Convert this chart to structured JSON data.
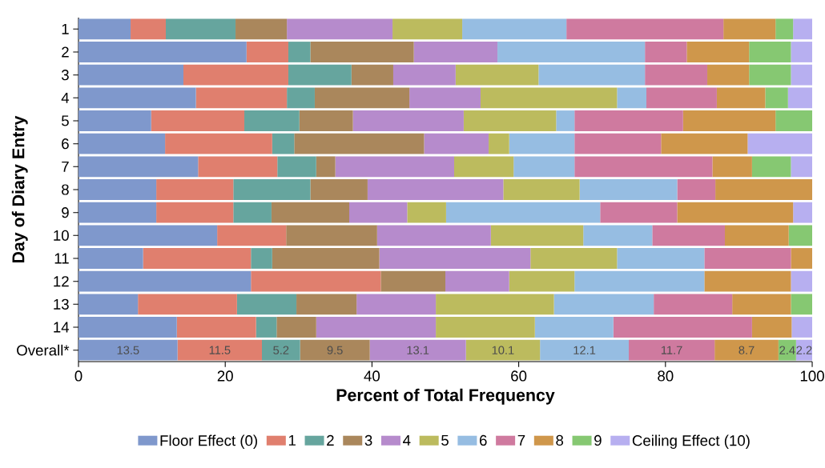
{
  "chart_data": {
    "type": "bar",
    "orientation": "horizontal",
    "stacked": true,
    "xlabel": "Percent of Total Frequency",
    "ylabel": "Day of Diary Entry",
    "categories": [
      "1",
      "2",
      "3",
      "4",
      "5",
      "6",
      "7",
      "8",
      "9",
      "10",
      "11",
      "12",
      "13",
      "14",
      "Overall*"
    ],
    "xlim": [
      0,
      100
    ],
    "xticks": [
      0,
      20,
      40,
      60,
      80,
      100
    ],
    "grid": false,
    "legend": "bottom",
    "series": [
      {
        "name": "Floor Effect (0)",
        "color": "#7f98cc",
        "values": [
          7.1,
          22.9,
          14.3,
          16.0,
          9.9,
          11.8,
          16.3,
          10.6,
          10.6,
          18.9,
          8.8,
          23.5,
          8.1,
          13.4,
          13.5
        ],
        "value_labels": [
          null,
          null,
          null,
          null,
          null,
          null,
          null,
          null,
          null,
          null,
          null,
          null,
          null,
          null,
          "13.5"
        ]
      },
      {
        "name": "1",
        "color": "#e07f6e",
        "values": [
          4.8,
          5.7,
          14.3,
          12.4,
          12.7,
          14.6,
          10.8,
          10.5,
          10.5,
          9.4,
          14.7,
          17.7,
          13.5,
          10.8,
          11.5
        ],
        "value_labels": [
          null,
          null,
          null,
          null,
          null,
          null,
          null,
          null,
          null,
          null,
          null,
          null,
          null,
          null,
          "11.5"
        ]
      },
      {
        "name": "2",
        "color": "#66a59e",
        "values": [
          9.5,
          3.0,
          8.6,
          3.8,
          7.5,
          3.0,
          5.3,
          10.5,
          5.2,
          0,
          2.9,
          0,
          8.1,
          2.8,
          5.2
        ],
        "value_labels": [
          null,
          null,
          null,
          null,
          null,
          null,
          null,
          null,
          null,
          null,
          null,
          null,
          null,
          null,
          "5.2"
        ]
      },
      {
        "name": "3",
        "color": "#aa875c",
        "values": [
          7.0,
          14.1,
          5.7,
          12.9,
          7.3,
          17.7,
          2.6,
          7.8,
          10.6,
          12.4,
          14.6,
          8.8,
          8.2,
          5.4,
          9.5
        ],
        "value_labels": [
          null,
          null,
          null,
          null,
          null,
          null,
          null,
          null,
          null,
          null,
          null,
          null,
          null,
          null,
          "9.5"
        ]
      },
      {
        "name": "4",
        "color": "#b68bcc",
        "values": [
          14.4,
          11.4,
          8.5,
          9.7,
          15.1,
          8.8,
          16.2,
          18.5,
          7.9,
          15.5,
          20.6,
          8.7,
          10.8,
          16.3,
          13.1
        ],
        "value_labels": [
          null,
          null,
          null,
          null,
          null,
          null,
          null,
          null,
          null,
          null,
          null,
          null,
          null,
          null,
          "13.1"
        ]
      },
      {
        "name": "5",
        "color": "#bcbb5e",
        "values": [
          9.5,
          0,
          11.3,
          18.6,
          12.6,
          2.8,
          8.1,
          10.4,
          5.3,
          12.6,
          11.8,
          8.9,
          16.1,
          13.5,
          10.1
        ],
        "value_labels": [
          null,
          null,
          null,
          null,
          null,
          null,
          null,
          null,
          null,
          null,
          null,
          null,
          null,
          null,
          "10.1"
        ]
      },
      {
        "name": "6",
        "color": "#96bde2",
        "values": [
          14.2,
          20.1,
          14.5,
          4.0,
          2.5,
          8.9,
          8.3,
          13.3,
          21.0,
          9.4,
          11.9,
          17.7,
          13.6,
          10.7,
          12.1
        ],
        "value_labels": [
          null,
          null,
          null,
          null,
          null,
          null,
          null,
          null,
          null,
          null,
          null,
          null,
          null,
          null,
          "12.1"
        ]
      },
      {
        "name": "7",
        "color": "#cf7a9f",
        "values": [
          21.4,
          5.7,
          8.5,
          9.6,
          14.8,
          11.8,
          18.8,
          5.2,
          10.5,
          9.9,
          11.8,
          0,
          10.7,
          18.9,
          11.7
        ],
        "value_labels": [
          null,
          null,
          null,
          null,
          null,
          null,
          null,
          null,
          null,
          null,
          null,
          null,
          null,
          null,
          "11.7"
        ]
      },
      {
        "name": "8",
        "color": "#cf974b",
        "values": [
          7.1,
          8.5,
          5.7,
          6.6,
          12.6,
          11.8,
          5.4,
          13.2,
          15.8,
          8.7,
          2.9,
          11.8,
          8.0,
          5.4,
          8.7
        ],
        "value_labels": [
          null,
          null,
          null,
          null,
          null,
          null,
          null,
          null,
          null,
          null,
          null,
          null,
          null,
          null,
          "8.7"
        ]
      },
      {
        "name": "9",
        "color": "#86c872",
        "values": [
          2.4,
          5.7,
          5.7,
          3.1,
          5.0,
          0,
          5.3,
          0,
          0,
          3.2,
          0,
          0,
          2.9,
          0,
          2.4
        ],
        "value_labels": [
          null,
          null,
          null,
          null,
          null,
          null,
          null,
          null,
          null,
          null,
          null,
          null,
          null,
          null,
          "2.4"
        ]
      },
      {
        "name": "Ceiling Effect (10)",
        "color": "#b7aff0",
        "values": [
          2.6,
          2.9,
          2.9,
          3.3,
          0,
          8.8,
          2.9,
          0,
          2.6,
          0,
          0,
          2.9,
          0,
          2.8,
          2.2
        ],
        "value_labels": [
          null,
          null,
          null,
          null,
          null,
          null,
          null,
          null,
          null,
          null,
          null,
          null,
          null,
          null,
          "2.2"
        ]
      }
    ]
  }
}
